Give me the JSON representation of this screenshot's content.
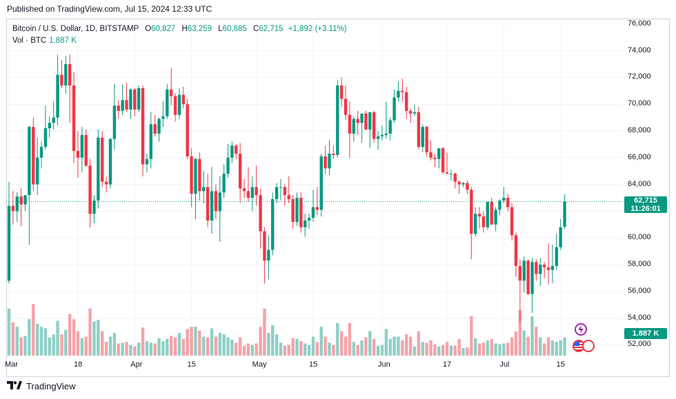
{
  "published": "Published on TradingView.com, Jul 15, 2024 12:33 UTC",
  "legend": {
    "symbol": "Bitcoin / U.S. Dollar, 1D, BITSTAMP",
    "o_key": "O",
    "o_val": "60,827",
    "h_key": "H",
    "h_val": "63,259",
    "l_key": "L",
    "l_val": "60,685",
    "c_key": "C",
    "c_val": "62,715",
    "change": "+1,892 (+3.11%)",
    "vol_label": "Vol · BTC",
    "vol_val": "1.887 K"
  },
  "price_tag": {
    "price": "62,715",
    "countdown": "11:26:01"
  },
  "vol_tag": "1.887 K",
  "footer": {
    "brand": "TradingView"
  },
  "colors": {
    "up": "#089981",
    "down": "#f23645",
    "vol_up": "#8fcfc5",
    "vol_down": "#f4a3a9",
    "grid": "#f0f3fa"
  },
  "icons": [
    "lightning-icon",
    "us-flag-icon"
  ],
  "chart_data": {
    "type": "candlestick",
    "title": "Bitcoin / U.S. Dollar, 1D, BITSTAMP",
    "ylim": [
      51200,
      76400
    ],
    "y_ticks": [
      "76,000",
      "74,000",
      "72,000",
      "70,000",
      "68,000",
      "66,000",
      "64,000",
      "62,000",
      "60,000",
      "58,000",
      "56,000",
      "54,000",
      "52,000"
    ],
    "y_tick_values": [
      76000,
      74000,
      72000,
      70000,
      68000,
      66000,
      64000,
      62000,
      60000,
      58000,
      56000,
      54000,
      52000
    ],
    "x_ticks": [
      {
        "label": "Mar",
        "day": 0
      },
      {
        "label": "18",
        "day": 17
      },
      {
        "label": "Apr",
        "day": 31
      },
      {
        "label": "15",
        "day": 45
      },
      {
        "label": "May",
        "day": 61
      },
      {
        "label": "15",
        "day": 75
      },
      {
        "label": "Jun",
        "day": 92
      },
      {
        "label": "17",
        "day": 108
      },
      {
        "label": "Jul",
        "day": 122
      },
      {
        "label": "15",
        "day": 136
      }
    ],
    "grid": true,
    "last_close": 62715,
    "candles": [
      {
        "o": 56800,
        "h": 64200,
        "l": 56600,
        "c": 62400,
        "v": 0.62
      },
      {
        "o": 62400,
        "h": 63500,
        "l": 61000,
        "c": 62000,
        "v": 0.44
      },
      {
        "o": 62000,
        "h": 63400,
        "l": 61200,
        "c": 63100,
        "v": 0.38
      },
      {
        "o": 63100,
        "h": 63700,
        "l": 60900,
        "c": 62500,
        "v": 0.24
      },
      {
        "o": 62500,
        "h": 63200,
        "l": 62000,
        "c": 63200,
        "v": 0.26
      },
      {
        "o": 63200,
        "h": 68400,
        "l": 59500,
        "c": 68300,
        "v": 0.48
      },
      {
        "o": 68300,
        "h": 69000,
        "l": 63500,
        "c": 64000,
        "v": 0.68
      },
      {
        "o": 64000,
        "h": 67500,
        "l": 63200,
        "c": 66000,
        "v": 0.42
      },
      {
        "o": 66000,
        "h": 67200,
        "l": 65200,
        "c": 66800,
        "v": 0.38
      },
      {
        "o": 66800,
        "h": 69900,
        "l": 66600,
        "c": 68200,
        "v": 0.36
      },
      {
        "o": 68200,
        "h": 69100,
        "l": 67500,
        "c": 68600,
        "v": 0.24
      },
      {
        "o": 68600,
        "h": 70200,
        "l": 68100,
        "c": 69000,
        "v": 0.28
      },
      {
        "o": 69000,
        "h": 73700,
        "l": 68400,
        "c": 72200,
        "v": 0.46
      },
      {
        "o": 72200,
        "h": 73300,
        "l": 71200,
        "c": 71400,
        "v": 0.28
      },
      {
        "o": 71400,
        "h": 73600,
        "l": 70800,
        "c": 73000,
        "v": 0.34
      },
      {
        "o": 73000,
        "h": 73700,
        "l": 68600,
        "c": 71400,
        "v": 0.55
      },
      {
        "o": 71400,
        "h": 72400,
        "l": 65600,
        "c": 66500,
        "v": 0.48
      },
      {
        "o": 66500,
        "h": 68000,
        "l": 64500,
        "c": 66000,
        "v": 0.32
      },
      {
        "o": 66000,
        "h": 68300,
        "l": 64900,
        "c": 67700,
        "v": 0.23
      },
      {
        "o": 67700,
        "h": 68100,
        "l": 65300,
        "c": 65400,
        "v": 0.25
      },
      {
        "o": 65400,
        "h": 65900,
        "l": 60800,
        "c": 61800,
        "v": 0.62
      },
      {
        "o": 61800,
        "h": 63200,
        "l": 61100,
        "c": 62800,
        "v": 0.45
      },
      {
        "o": 62800,
        "h": 68100,
        "l": 62200,
        "c": 67500,
        "v": 0.47
      },
      {
        "o": 67500,
        "h": 68000,
        "l": 63800,
        "c": 64200,
        "v": 0.32
      },
      {
        "o": 64200,
        "h": 64600,
        "l": 63400,
        "c": 64000,
        "v": 0.18
      },
      {
        "o": 64000,
        "h": 67500,
        "l": 63700,
        "c": 67400,
        "v": 0.25
      },
      {
        "o": 67400,
        "h": 71500,
        "l": 66600,
        "c": 69900,
        "v": 0.3
      },
      {
        "o": 69900,
        "h": 70300,
        "l": 68900,
        "c": 69500,
        "v": 0.16
      },
      {
        "o": 69500,
        "h": 71500,
        "l": 69200,
        "c": 70300,
        "v": 0.17
      },
      {
        "o": 70300,
        "h": 71600,
        "l": 69400,
        "c": 69600,
        "v": 0.18
      },
      {
        "o": 69600,
        "h": 71200,
        "l": 68900,
        "c": 71100,
        "v": 0.14
      },
      {
        "o": 71100,
        "h": 71200,
        "l": 69100,
        "c": 69600,
        "v": 0.12
      },
      {
        "o": 69600,
        "h": 71400,
        "l": 69400,
        "c": 71200,
        "v": 0.17
      },
      {
        "o": 71200,
        "h": 71400,
        "l": 64600,
        "c": 65500,
        "v": 0.37
      },
      {
        "o": 65500,
        "h": 66300,
        "l": 64900,
        "c": 65900,
        "v": 0.19
      },
      {
        "o": 65900,
        "h": 69400,
        "l": 65200,
        "c": 68500,
        "v": 0.17
      },
      {
        "o": 68500,
        "h": 69200,
        "l": 67600,
        "c": 67800,
        "v": 0.16
      },
      {
        "o": 67800,
        "h": 69000,
        "l": 67200,
        "c": 68900,
        "v": 0.23
      },
      {
        "o": 68900,
        "h": 70200,
        "l": 68300,
        "c": 69100,
        "v": 0.19
      },
      {
        "o": 69100,
        "h": 71500,
        "l": 68900,
        "c": 71100,
        "v": 0.22
      },
      {
        "o": 71100,
        "h": 72700,
        "l": 69900,
        "c": 70600,
        "v": 0.26
      },
      {
        "o": 70600,
        "h": 70800,
        "l": 68700,
        "c": 69200,
        "v": 0.24
      },
      {
        "o": 69200,
        "h": 71200,
        "l": 68900,
        "c": 70700,
        "v": 0.3
      },
      {
        "o": 70700,
        "h": 71300,
        "l": 69700,
        "c": 70000,
        "v": 0.22
      },
      {
        "o": 70000,
        "h": 70400,
        "l": 65900,
        "c": 66100,
        "v": 0.35
      },
      {
        "o": 66100,
        "h": 66700,
        "l": 62300,
        "c": 63300,
        "v": 0.38
      },
      {
        "o": 63300,
        "h": 66000,
        "l": 61400,
        "c": 65900,
        "v": 0.38
      },
      {
        "o": 65900,
        "h": 66400,
        "l": 62800,
        "c": 63500,
        "v": 0.33
      },
      {
        "o": 63500,
        "h": 65000,
        "l": 62600,
        "c": 63800,
        "v": 0.25
      },
      {
        "o": 63800,
        "h": 64800,
        "l": 60800,
        "c": 61300,
        "v": 0.24
      },
      {
        "o": 61300,
        "h": 65300,
        "l": 60300,
        "c": 63500,
        "v": 0.36
      },
      {
        "o": 63500,
        "h": 64000,
        "l": 61400,
        "c": 62000,
        "v": 0.25
      },
      {
        "o": 62000,
        "h": 64600,
        "l": 59700,
        "c": 63400,
        "v": 0.3
      },
      {
        "o": 63400,
        "h": 65500,
        "l": 63000,
        "c": 64800,
        "v": 0.28
      },
      {
        "o": 64800,
        "h": 67000,
        "l": 64500,
        "c": 66000,
        "v": 0.24
      },
      {
        "o": 66000,
        "h": 67200,
        "l": 65600,
        "c": 66900,
        "v": 0.21
      },
      {
        "o": 66900,
        "h": 67000,
        "l": 65900,
        "c": 66300,
        "v": 0.17
      },
      {
        "o": 66300,
        "h": 67100,
        "l": 62600,
        "c": 63700,
        "v": 0.24
      },
      {
        "o": 63700,
        "h": 64400,
        "l": 63000,
        "c": 63500,
        "v": 0.13
      },
      {
        "o": 63500,
        "h": 65300,
        "l": 62700,
        "c": 63000,
        "v": 0.16
      },
      {
        "o": 63000,
        "h": 64600,
        "l": 62000,
        "c": 63800,
        "v": 0.14
      },
      {
        "o": 63800,
        "h": 65400,
        "l": 62400,
        "c": 63200,
        "v": 0.16
      },
      {
        "o": 63200,
        "h": 63700,
        "l": 59200,
        "c": 60500,
        "v": 0.38
      },
      {
        "o": 60500,
        "h": 60800,
        "l": 56600,
        "c": 58300,
        "v": 0.62
      },
      {
        "o": 58300,
        "h": 60200,
        "l": 56900,
        "c": 59100,
        "v": 0.3
      },
      {
        "o": 59100,
        "h": 63400,
        "l": 58700,
        "c": 62900,
        "v": 0.4
      },
      {
        "o": 62900,
        "h": 64100,
        "l": 62600,
        "c": 63800,
        "v": 0.28
      },
      {
        "o": 63800,
        "h": 64400,
        "l": 62800,
        "c": 63800,
        "v": 0.17
      },
      {
        "o": 63800,
        "h": 64000,
        "l": 62400,
        "c": 63200,
        "v": 0.13
      },
      {
        "o": 63200,
        "h": 64600,
        "l": 62600,
        "c": 62900,
        "v": 0.14
      },
      {
        "o": 62900,
        "h": 63200,
        "l": 60700,
        "c": 61200,
        "v": 0.23
      },
      {
        "o": 61200,
        "h": 63400,
        "l": 60900,
        "c": 63000,
        "v": 0.22
      },
      {
        "o": 63000,
        "h": 63400,
        "l": 60400,
        "c": 60800,
        "v": 0.19
      },
      {
        "o": 60800,
        "h": 61800,
        "l": 60100,
        "c": 61300,
        "v": 0.16
      },
      {
        "o": 61300,
        "h": 61800,
        "l": 60700,
        "c": 61500,
        "v": 0.14
      },
      {
        "o": 61500,
        "h": 63600,
        "l": 61200,
        "c": 62300,
        "v": 0.25
      },
      {
        "o": 62300,
        "h": 63800,
        "l": 61700,
        "c": 62100,
        "v": 0.18
      },
      {
        "o": 62100,
        "h": 66300,
        "l": 61600,
        "c": 66100,
        "v": 0.38
      },
      {
        "o": 66100,
        "h": 66900,
        "l": 64800,
        "c": 65200,
        "v": 0.25
      },
      {
        "o": 65200,
        "h": 67300,
        "l": 64700,
        "c": 66300,
        "v": 0.17
      },
      {
        "o": 66300,
        "h": 66900,
        "l": 65900,
        "c": 66200,
        "v": 0.14
      },
      {
        "o": 66200,
        "h": 71800,
        "l": 66000,
        "c": 71400,
        "v": 0.43
      },
      {
        "o": 71400,
        "h": 72000,
        "l": 69800,
        "c": 70400,
        "v": 0.32
      },
      {
        "o": 70400,
        "h": 71400,
        "l": 68800,
        "c": 69200,
        "v": 0.25
      },
      {
        "o": 69200,
        "h": 70200,
        "l": 66000,
        "c": 67800,
        "v": 0.43
      },
      {
        "o": 67800,
        "h": 69100,
        "l": 67200,
        "c": 68900,
        "v": 0.18
      },
      {
        "o": 68900,
        "h": 69500,
        "l": 67700,
        "c": 68600,
        "v": 0.14
      },
      {
        "o": 68600,
        "h": 69300,
        "l": 67100,
        "c": 69300,
        "v": 0.2
      },
      {
        "o": 69300,
        "h": 69500,
        "l": 68200,
        "c": 68100,
        "v": 0.24
      },
      {
        "o": 68100,
        "h": 69300,
        "l": 66700,
        "c": 69400,
        "v": 0.32
      },
      {
        "o": 69400,
        "h": 69500,
        "l": 67100,
        "c": 67400,
        "v": 0.22
      },
      {
        "o": 67400,
        "h": 68000,
        "l": 66600,
        "c": 67600,
        "v": 0.13
      },
      {
        "o": 67600,
        "h": 68400,
        "l": 67300,
        "c": 67700,
        "v": 0.14
      },
      {
        "o": 67700,
        "h": 70200,
        "l": 67400,
        "c": 67800,
        "v": 0.35
      },
      {
        "o": 67800,
        "h": 69000,
        "l": 67300,
        "c": 68800,
        "v": 0.22
      },
      {
        "o": 68800,
        "h": 71100,
        "l": 68600,
        "c": 70500,
        "v": 0.25
      },
      {
        "o": 70500,
        "h": 71700,
        "l": 70200,
        "c": 71000,
        "v": 0.25
      },
      {
        "o": 71000,
        "h": 71900,
        "l": 70200,
        "c": 70900,
        "v": 0.2
      },
      {
        "o": 70900,
        "h": 71300,
        "l": 68900,
        "c": 69500,
        "v": 0.28
      },
      {
        "o": 69500,
        "h": 69700,
        "l": 68600,
        "c": 69300,
        "v": 0.25
      },
      {
        "o": 69300,
        "h": 70000,
        "l": 69100,
        "c": 69400,
        "v": 0.12
      },
      {
        "o": 69400,
        "h": 69800,
        "l": 66600,
        "c": 66800,
        "v": 0.32
      },
      {
        "o": 66800,
        "h": 68500,
        "l": 66400,
        "c": 68300,
        "v": 0.18
      },
      {
        "o": 68300,
        "h": 68400,
        "l": 66100,
        "c": 66400,
        "v": 0.17
      },
      {
        "o": 66400,
        "h": 67300,
        "l": 65800,
        "c": 66000,
        "v": 0.2
      },
      {
        "o": 66000,
        "h": 66300,
        "l": 65300,
        "c": 65900,
        "v": 0.15
      },
      {
        "o": 65900,
        "h": 66700,
        "l": 65200,
        "c": 66700,
        "v": 0.12
      },
      {
        "o": 66700,
        "h": 66800,
        "l": 64800,
        "c": 64900,
        "v": 0.14
      },
      {
        "o": 64900,
        "h": 66400,
        "l": 64800,
        "c": 64800,
        "v": 0.18
      },
      {
        "o": 64800,
        "h": 65100,
        "l": 64300,
        "c": 64800,
        "v": 0.13
      },
      {
        "o": 64800,
        "h": 64900,
        "l": 63700,
        "c": 64200,
        "v": 0.13
      },
      {
        "o": 64200,
        "h": 64300,
        "l": 63300,
        "c": 64000,
        "v": 0.22
      },
      {
        "o": 64000,
        "h": 64200,
        "l": 63800,
        "c": 64100,
        "v": 0.1
      },
      {
        "o": 64100,
        "h": 64300,
        "l": 63300,
        "c": 63600,
        "v": 0.11
      },
      {
        "o": 63600,
        "h": 63800,
        "l": 58400,
        "c": 60300,
        "v": 0.52
      },
      {
        "o": 60300,
        "h": 62300,
        "l": 60100,
        "c": 61800,
        "v": 0.23
      },
      {
        "o": 61800,
        "h": 62300,
        "l": 60700,
        "c": 61600,
        "v": 0.16
      },
      {
        "o": 61600,
        "h": 62000,
        "l": 60400,
        "c": 60800,
        "v": 0.17
      },
      {
        "o": 60800,
        "h": 62700,
        "l": 60600,
        "c": 62700,
        "v": 0.2
      },
      {
        "o": 62700,
        "h": 63000,
        "l": 61000,
        "c": 61000,
        "v": 0.22
      },
      {
        "o": 61000,
        "h": 62300,
        "l": 60500,
        "c": 62100,
        "v": 0.16
      },
      {
        "o": 62100,
        "h": 62900,
        "l": 61700,
        "c": 62800,
        "v": 0.15
      },
      {
        "o": 62800,
        "h": 63800,
        "l": 62600,
        "c": 63000,
        "v": 0.16
      },
      {
        "o": 63000,
        "h": 63300,
        "l": 62000,
        "c": 62300,
        "v": 0.17
      },
      {
        "o": 62300,
        "h": 62600,
        "l": 59800,
        "c": 60200,
        "v": 0.24
      },
      {
        "o": 60200,
        "h": 60400,
        "l": 57100,
        "c": 57900,
        "v": 0.32
      },
      {
        "o": 57900,
        "h": 58400,
        "l": 53700,
        "c": 56800,
        "v": 0.6
      },
      {
        "o": 56800,
        "h": 58600,
        "l": 55900,
        "c": 58300,
        "v": 0.33
      },
      {
        "o": 58300,
        "h": 58400,
        "l": 55800,
        "c": 55800,
        "v": 0.25
      },
      {
        "o": 55800,
        "h": 58500,
        "l": 54400,
        "c": 58200,
        "v": 0.52
      },
      {
        "o": 58200,
        "h": 58400,
        "l": 56800,
        "c": 57300,
        "v": 0.38
      },
      {
        "o": 57300,
        "h": 58500,
        "l": 56400,
        "c": 58000,
        "v": 0.24
      },
      {
        "o": 58000,
        "h": 58200,
        "l": 57000,
        "c": 57800,
        "v": 0.16
      },
      {
        "o": 57800,
        "h": 59600,
        "l": 56500,
        "c": 57600,
        "v": 0.24
      },
      {
        "o": 57600,
        "h": 59500,
        "l": 56600,
        "c": 57900,
        "v": 0.2
      },
      {
        "o": 57900,
        "h": 60300,
        "l": 57600,
        "c": 59300,
        "v": 0.18
      },
      {
        "o": 59300,
        "h": 61400,
        "l": 59100,
        "c": 60800,
        "v": 0.2
      },
      {
        "o": 60827,
        "h": 63259,
        "l": 60685,
        "c": 62715,
        "v": 0.24
      }
    ]
  }
}
